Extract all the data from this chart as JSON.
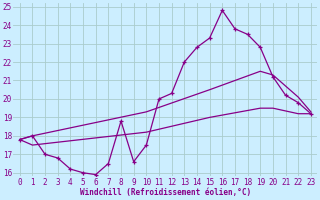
{
  "xlabel": "Windchill (Refroidissement éolien,°C)",
  "bg_color": "#cceeff",
  "grid_color": "#aacccc",
  "line_color": "#880088",
  "xlim": [
    -0.5,
    23.5
  ],
  "ylim": [
    15.8,
    25.2
  ],
  "xticks": [
    0,
    1,
    2,
    3,
    4,
    5,
    6,
    7,
    8,
    9,
    10,
    11,
    12,
    13,
    14,
    15,
    16,
    17,
    18,
    19,
    20,
    21,
    22,
    23
  ],
  "yticks": [
    16,
    17,
    18,
    19,
    20,
    21,
    22,
    23,
    24,
    25
  ],
  "line1_x": [
    0,
    1,
    2,
    3,
    4,
    5,
    6,
    7,
    8,
    9,
    10,
    11,
    12,
    13,
    14,
    15,
    16,
    17,
    18,
    19,
    20,
    21,
    22,
    23
  ],
  "line1_y": [
    17.8,
    18.0,
    17.0,
    16.8,
    16.2,
    16.0,
    15.9,
    16.5,
    18.8,
    16.6,
    17.5,
    20.0,
    20.3,
    22.0,
    22.8,
    23.3,
    24.8,
    23.8,
    23.5,
    22.8,
    21.2,
    20.2,
    19.8,
    19.2
  ],
  "line2_x": [
    0,
    1,
    10,
    15,
    19,
    20,
    22,
    23
  ],
  "line2_y": [
    17.8,
    18.0,
    19.3,
    20.5,
    21.5,
    21.3,
    20.1,
    19.3
  ],
  "line3_x": [
    0,
    1,
    10,
    15,
    19,
    20,
    22,
    23
  ],
  "line3_y": [
    17.8,
    17.5,
    18.2,
    19.0,
    19.5,
    19.5,
    19.2,
    19.2
  ],
  "xlabel_fontsize": 5.5,
  "tick_fontsize": 5.5
}
